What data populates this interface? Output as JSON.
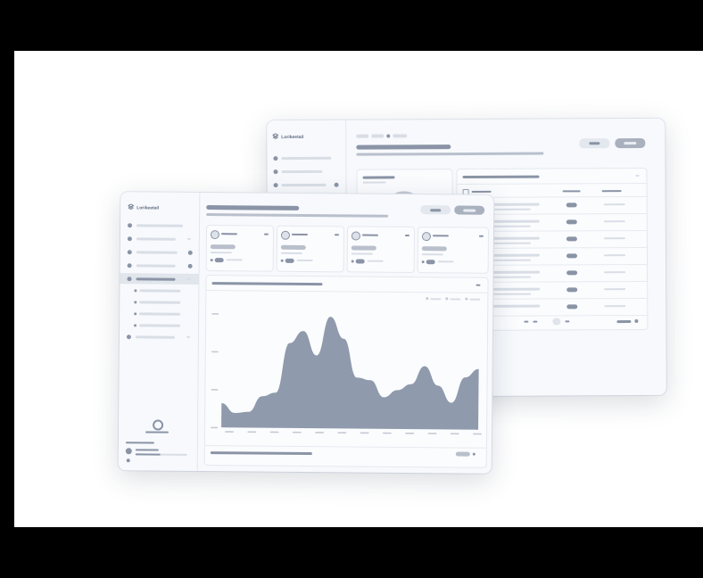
{
  "brand": {
    "name": "Lorikeetail",
    "icon": "stack-logo-icon"
  },
  "colors": {
    "bar_dark": "#8a94a6",
    "bar_light": "#d9dee6",
    "area_fill": "#8f9aac",
    "window_bg": "#f7f9fc"
  },
  "front_chart": {
    "type": "area",
    "series_values": [
      20,
      12,
      13,
      26,
      29,
      70,
      80,
      60,
      92,
      74,
      42,
      40,
      26,
      32,
      37,
      52,
      36,
      22,
      43,
      50
    ],
    "ylim": [
      0,
      100
    ]
  }
}
